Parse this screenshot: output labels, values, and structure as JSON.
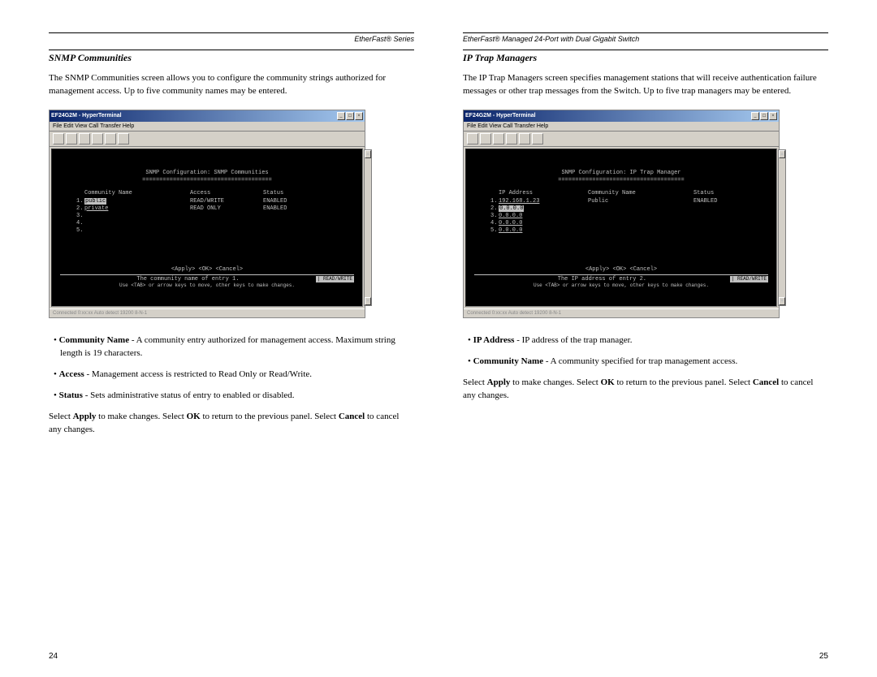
{
  "left_page": {
    "header": "EtherFast® Series",
    "section_title": "SNMP Communities",
    "intro": "The SNMP Communities screen allows you to configure the community strings authorized for management access. Up to five community names may be entered.",
    "terminal": {
      "titlebar": "EF24G2M - HyperTerminal",
      "menu": "File  Edit  View  Call  Transfer  Help",
      "title": "SNMP Configuration: SNMP Communities",
      "underline": "======================================",
      "col1": "Community Name",
      "col2": "Access",
      "col3": "Status",
      "rows": [
        {
          "n": "1.",
          "name": "public",
          "access": "READ/WRITE",
          "status": "ENABLED",
          "hl": true
        },
        {
          "n": "2.",
          "name": "private",
          "access": "READ ONLY",
          "status": "ENABLED",
          "hl": false
        },
        {
          "n": "3.",
          "name": "",
          "access": "",
          "status": "",
          "hl": false
        },
        {
          "n": "4.",
          "name": "",
          "access": "",
          "status": "",
          "hl": false
        },
        {
          "n": "5.",
          "name": "",
          "access": "",
          "status": "",
          "hl": false
        }
      ],
      "actions": "<Apply>          <OK>          <Cancel>",
      "status_msg": "The community name of entry 1.",
      "status_right": "| READ/WRITE",
      "hint": "Use <TAB> or arrow keys to move, other keys to make changes.",
      "statusbar": "Connected 0:xx:xx     Auto detect     19200 8-N-1"
    },
    "bullets": [
      {
        "bold": "Community Name",
        "text": " - A community entry authorized for management access. Maximum string length is 19 characters."
      },
      {
        "bold": "Access",
        "text": " - Management access is restricted to Read Only or Read/Write."
      },
      {
        "bold": "Status",
        "text": " - Sets administrative status of entry to enabled or disabled."
      }
    ],
    "outro_parts": [
      "Select ",
      "Apply",
      " to make changes. Select ",
      "OK",
      " to return to the previous panel. Select ",
      "Cancel",
      " to cancel any changes."
    ],
    "page_num": "24"
  },
  "right_page": {
    "header": "EtherFast® Managed 24-Port with Dual Gigabit Switch",
    "section_title": "IP Trap Managers",
    "intro": "The IP Trap Managers screen specifies management stations that will receive authentication failure messages or other trap messages from the Switch. Up to five trap managers may be entered.",
    "terminal": {
      "titlebar": "EF24G2M - HyperTerminal",
      "menu": "File  Edit  View  Call  Transfer  Help",
      "title": "SNMP Configuration: IP Trap Manager",
      "underline": "=====================================",
      "col1": "IP Address",
      "col2": "Community Name",
      "col3": "Status",
      "rows": [
        {
          "n": "1.",
          "ip": "192.168.1.23",
          "name": "Public",
          "status": "ENABLED"
        },
        {
          "n": "2.",
          "ip": "0.0.0.0",
          "name": "",
          "status": ""
        },
        {
          "n": "3.",
          "ip": "0.0.0.0",
          "name": "",
          "status": ""
        },
        {
          "n": "4.",
          "ip": "0.0.0.0",
          "name": "",
          "status": ""
        },
        {
          "n": "5.",
          "ip": "0.0.0.0",
          "name": "",
          "status": ""
        }
      ],
      "actions": "<Apply>          <OK>          <Cancel>",
      "status_msg": "The IP address of entry 2.",
      "status_right": "| READ/WRITE",
      "hint": "Use <TAB> or arrow keys to move, other keys to make changes.",
      "statusbar": "Connected 0:xx:xx     Auto detect     19200 8-N-1"
    },
    "bullets": [
      {
        "bold": "IP Address",
        "text": " - IP address of the trap manager."
      },
      {
        "bold": "Community Name",
        "text": " - A community specified for trap management access."
      }
    ],
    "outro_parts": [
      "Select ",
      "Apply",
      " to make changes. Select ",
      "OK",
      " to return to the previous panel. Select ",
      "Cancel",
      " to cancel any changes."
    ],
    "page_num": "25"
  }
}
